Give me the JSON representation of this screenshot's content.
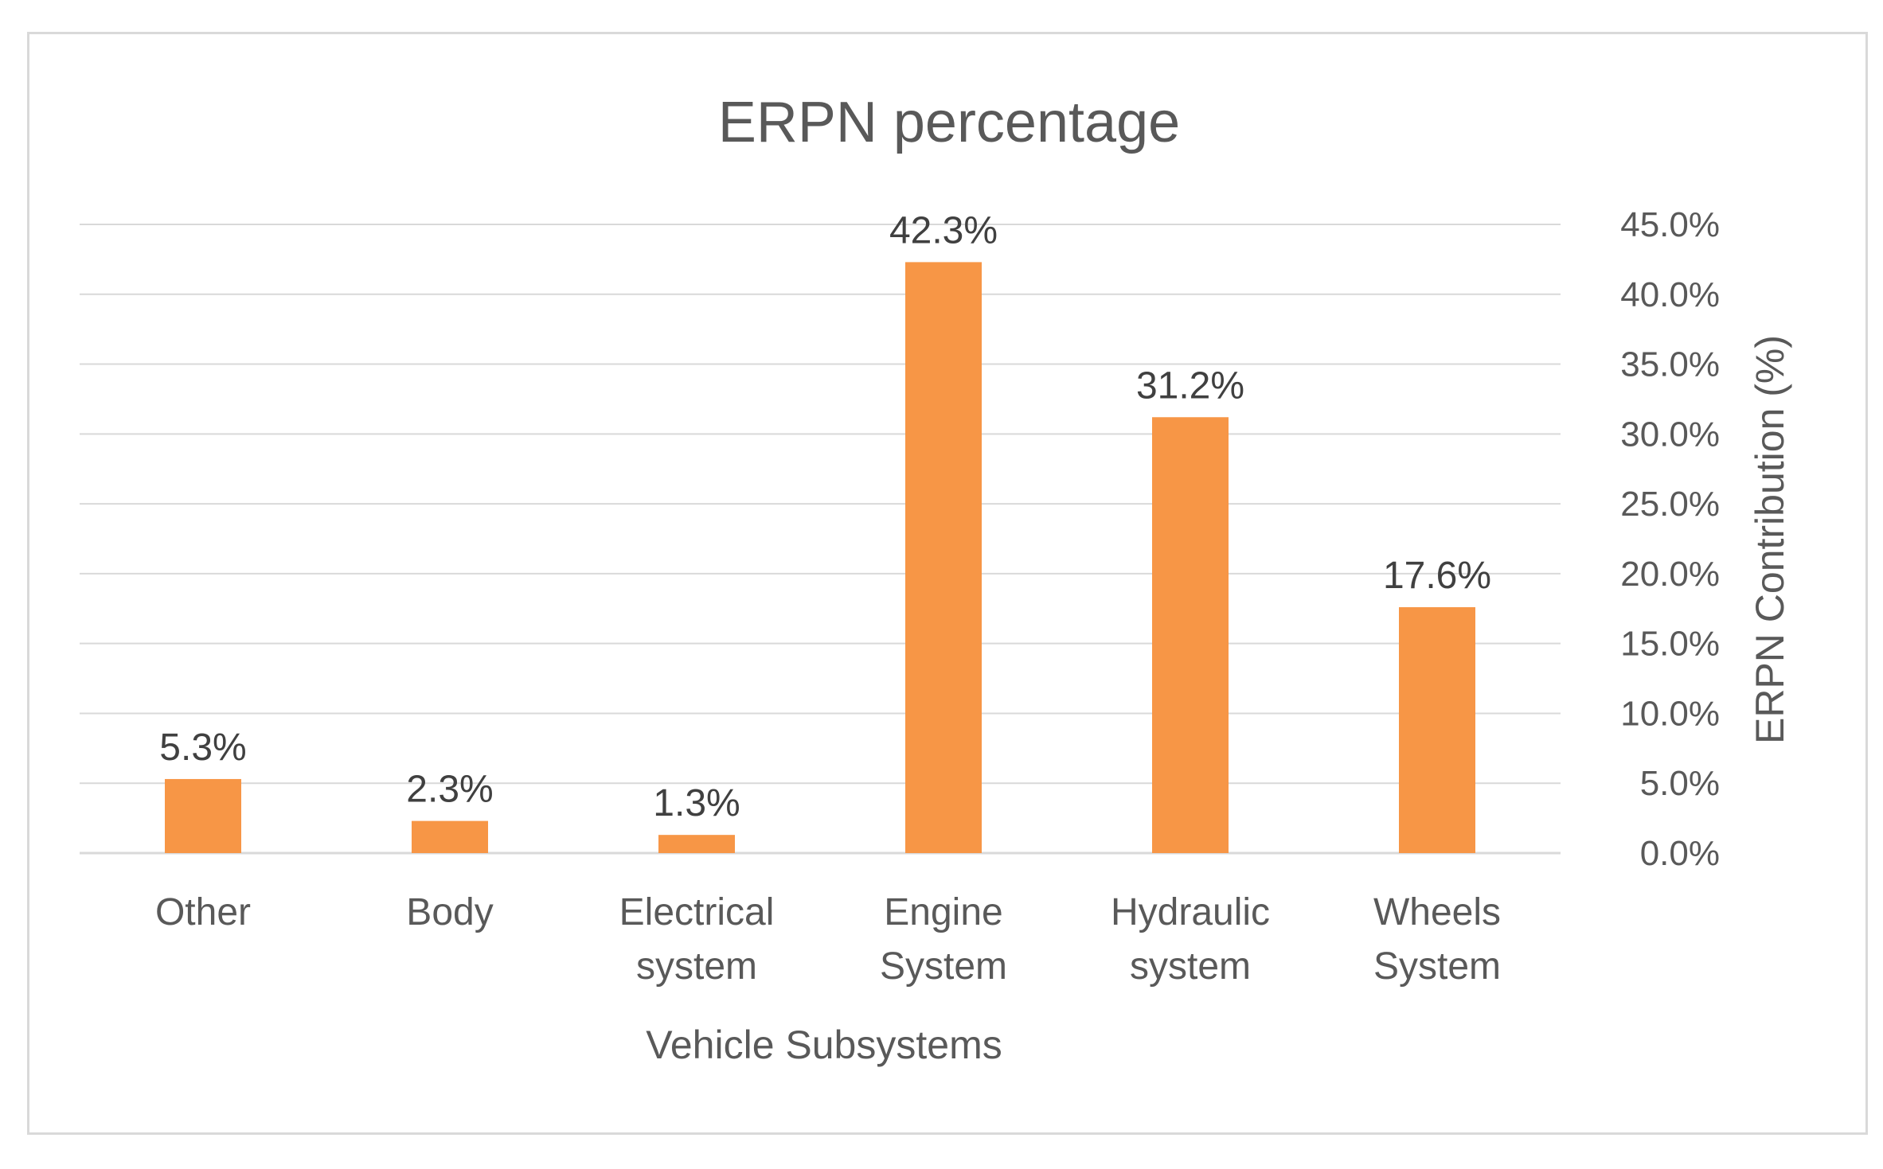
{
  "chart_data": {
    "type": "bar",
    "title": "ERPN percentage",
    "xlabel": "Vehicle Subsystems",
    "ylabel": "ERPN Contribution (%)",
    "y_axis_position": "right",
    "ylim": [
      0,
      45
    ],
    "yticks": [
      0,
      5,
      10,
      15,
      20,
      25,
      30,
      35,
      40,
      45
    ],
    "ytick_labels": [
      "0.0%",
      "5.0%",
      "10.0%",
      "15.0%",
      "20.0%",
      "25.0%",
      "30.0%",
      "35.0%",
      "40.0%",
      "45.0%"
    ],
    "categories": [
      [
        "Other"
      ],
      [
        "Body"
      ],
      [
        "Electrical",
        "system"
      ],
      [
        "Engine",
        "System"
      ],
      [
        "Hydraulic",
        "system"
      ],
      [
        "Wheels",
        "System"
      ]
    ],
    "values": [
      5.3,
      2.3,
      1.3,
      42.3,
      31.2,
      17.6
    ],
    "data_labels": [
      "5.3%",
      "2.3%",
      "1.3%",
      "42.3%",
      "31.2%",
      "17.6%"
    ],
    "bar_color": "#f79646",
    "grid": true,
    "legend": "none"
  }
}
